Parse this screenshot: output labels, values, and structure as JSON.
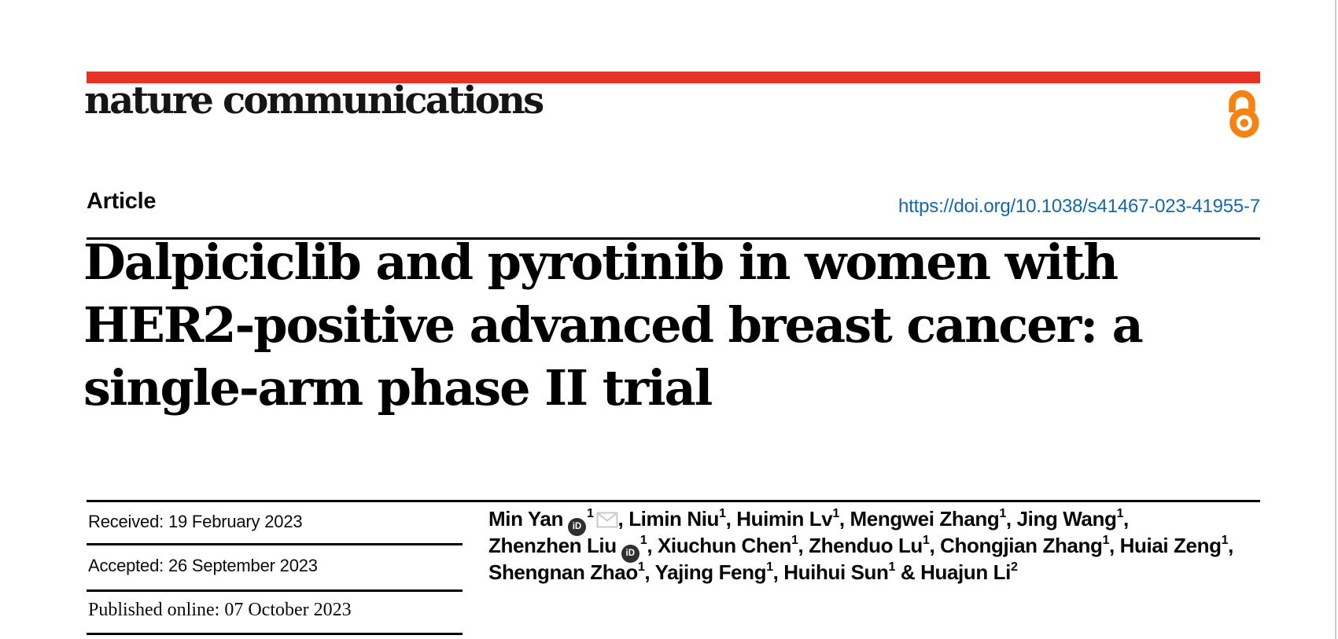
{
  "journal": {
    "name": "nature communications"
  },
  "colors": {
    "brand_red": "#e63323",
    "link_blue": "#1567ac",
    "open_access_orange": "#f68212",
    "rule_black": "#000000",
    "page_edge_gray": "#cbcbcb"
  },
  "article": {
    "type_label": "Article",
    "doi": "https://doi.org/10.1038/s41467-023-41955-7",
    "title_lines": [
      "Dalpiciclib and pyrotinib in women with",
      "HER2-positive advanced breast cancer: a",
      "single-arm phase II trial"
    ]
  },
  "dates": {
    "received": "Received: 19 February 2023",
    "accepted": "Accepted: 26 September 2023",
    "published": "Published online: 07 October 2023"
  },
  "icons": {
    "orcid_label": "iD",
    "orcid_name": "ORCID",
    "email_name": "email",
    "open_access_name": "open access"
  },
  "authors": {
    "lines": [
      [
        {
          "t": "name",
          "v": "Min Yan"
        },
        {
          "t": "icon",
          "v": "orcid"
        },
        {
          "t": "sup",
          "v": "1"
        },
        {
          "t": "icon",
          "v": "email"
        },
        {
          "t": "sep",
          "v": ", "
        },
        {
          "t": "name",
          "v": "Limin Niu"
        },
        {
          "t": "sup",
          "v": "1"
        },
        {
          "t": "sep",
          "v": ", "
        },
        {
          "t": "name",
          "v": "Huimin Lv"
        },
        {
          "t": "sup",
          "v": "1"
        },
        {
          "t": "sep",
          "v": ", "
        },
        {
          "t": "name",
          "v": "Mengwei Zhang"
        },
        {
          "t": "sup",
          "v": "1"
        },
        {
          "t": "sep",
          "v": ", "
        },
        {
          "t": "name",
          "v": "Jing Wang"
        },
        {
          "t": "sup",
          "v": "1"
        },
        {
          "t": "sep",
          "v": ","
        }
      ],
      [
        {
          "t": "name",
          "v": "Zhenzhen Liu"
        },
        {
          "t": "icon",
          "v": "orcid"
        },
        {
          "t": "sup",
          "v": "1"
        },
        {
          "t": "sep",
          "v": ", "
        },
        {
          "t": "name",
          "v": "Xiuchun Chen"
        },
        {
          "t": "sup",
          "v": "1"
        },
        {
          "t": "sep",
          "v": ", "
        },
        {
          "t": "name",
          "v": "Zhenduo Lu"
        },
        {
          "t": "sup",
          "v": "1"
        },
        {
          "t": "sep",
          "v": ", "
        },
        {
          "t": "name",
          "v": "Chongjian Zhang"
        },
        {
          "t": "sup",
          "v": "1"
        },
        {
          "t": "sep",
          "v": ", "
        },
        {
          "t": "name",
          "v": "Huiai Zeng"
        },
        {
          "t": "sup",
          "v": "1"
        },
        {
          "t": "sep",
          "v": ","
        }
      ],
      [
        {
          "t": "name",
          "v": "Shengnan Zhao"
        },
        {
          "t": "sup",
          "v": "1"
        },
        {
          "t": "sep",
          "v": ", "
        },
        {
          "t": "name",
          "v": "Yajing Feng"
        },
        {
          "t": "sup",
          "v": "1"
        },
        {
          "t": "sep",
          "v": ", "
        },
        {
          "t": "name",
          "v": "Huihui Sun"
        },
        {
          "t": "sup",
          "v": "1"
        },
        {
          "t": "sep",
          "v": " & "
        },
        {
          "t": "name",
          "v": "Huajun Li"
        },
        {
          "t": "sup",
          "v": "2"
        }
      ]
    ]
  }
}
